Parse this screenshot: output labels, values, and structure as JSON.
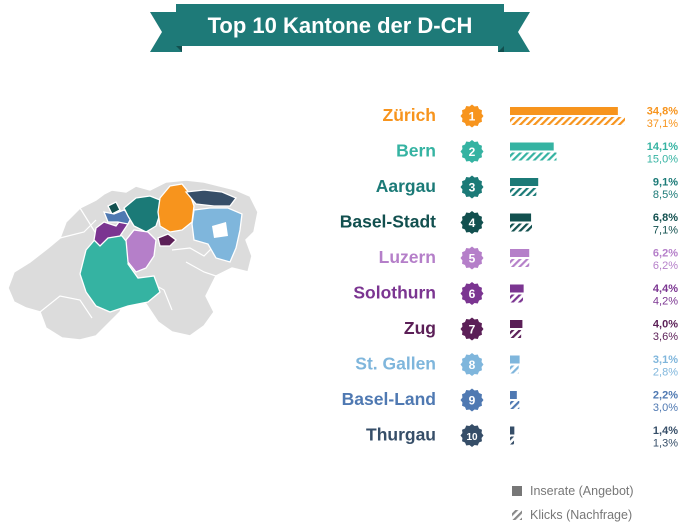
{
  "header": {
    "title": "Top 10 Kantone der D-CH",
    "ribbon_color": "#1e7a78",
    "ribbon_dark": "#12504f"
  },
  "legend": {
    "solid_label": "Inserate (Angebot)",
    "hatched_label": "Klicks (Nachfrage)",
    "color": "#777777"
  },
  "map": {
    "base_color": "#dcdcdc",
    "border_color": "#ffffff"
  },
  "chart_data": {
    "type": "bar",
    "title": "Top 10 Kantone der D-CH",
    "categories": [
      "Zürich",
      "Bern",
      "Aargau",
      "Basel-Stadt",
      "Luzern",
      "Solothurn",
      "Zug",
      "St. Gallen",
      "Basel-Land",
      "Thurgau"
    ],
    "ranks": [
      "1",
      "2",
      "3",
      "4",
      "5",
      "6",
      "7",
      "8",
      "9",
      "10"
    ],
    "colors": [
      "#f7941d",
      "#35b3a2",
      "#1b7a77",
      "#12504f",
      "#b57fc9",
      "#7b3591",
      "#5b1f57",
      "#7fb6dc",
      "#4f79b2",
      "#364e68"
    ],
    "series": [
      {
        "name": "Inserate (Angebot)",
        "values": [
          34.8,
          14.1,
          9.1,
          6.8,
          6.2,
          4.4,
          4.0,
          3.1,
          2.2,
          1.4
        ],
        "labels": [
          "34,8%",
          "14,1%",
          "9,1%",
          "6,8%",
          "6,2%",
          "4,4%",
          "4,0%",
          "3,1%",
          "2,2%",
          "1,4%"
        ]
      },
      {
        "name": "Klicks (Nachfrage)",
        "values": [
          37.1,
          15.0,
          8.5,
          7.1,
          6.2,
          4.2,
          3.6,
          2.8,
          3.0,
          1.3
        ],
        "labels": [
          "37,1%",
          "15,0%",
          "8,5%",
          "7,1%",
          "6,2%",
          "4,2%",
          "3,6%",
          "2,8%",
          "3,0%",
          "1,3%"
        ]
      }
    ],
    "xlim": [
      0,
      37.1
    ],
    "grid": false,
    "legend_position": "bottom-right"
  }
}
